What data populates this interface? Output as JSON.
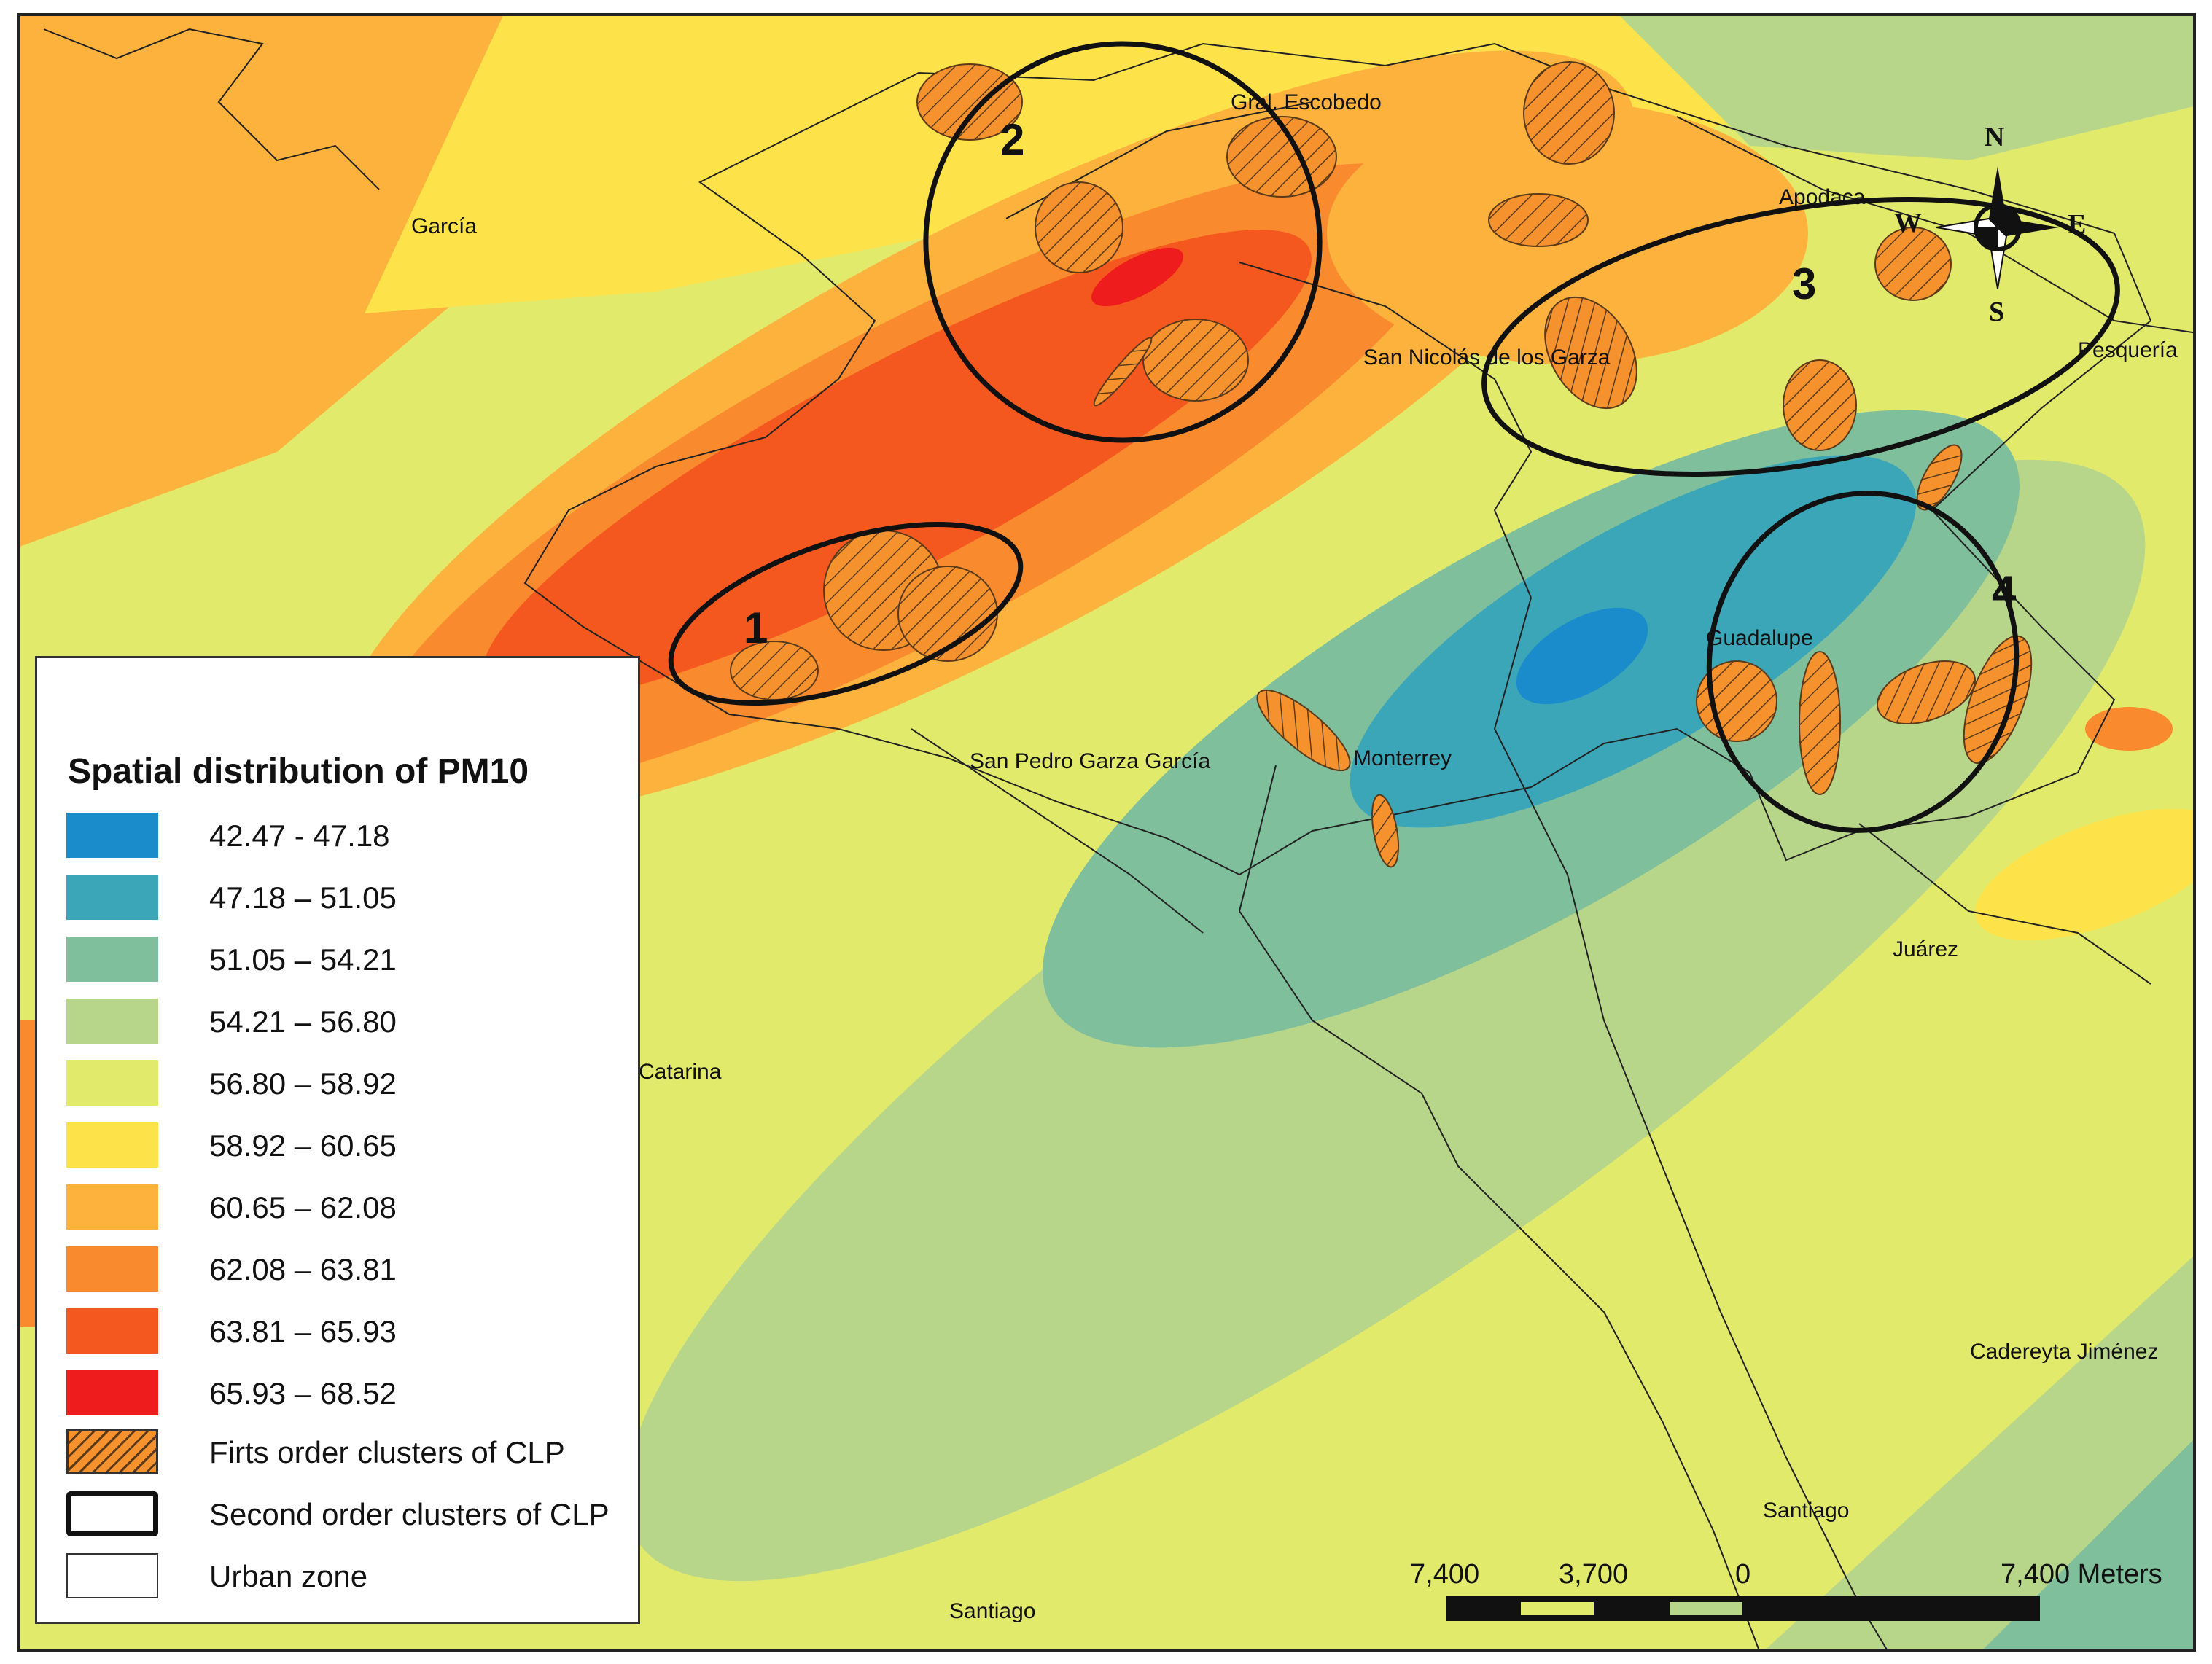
{
  "legend": {
    "title": "Spatial distribution of PM10",
    "classes": [
      {
        "label": "42.47 - 47.18",
        "color": "#1a8ccc"
      },
      {
        "label": "47.18 – 51.05",
        "color": "#3ba6b8"
      },
      {
        "label": "51.05 – 54.21",
        "color": "#7fbf9c"
      },
      {
        "label": "54.21 – 56.80",
        "color": "#b8d68a"
      },
      {
        "label": "56.80 – 58.92",
        "color": "#e2ea6c"
      },
      {
        "label": "58.92 – 60.65",
        "color": "#fde24a"
      },
      {
        "label": "60.65 – 62.08",
        "color": "#fcb23c"
      },
      {
        "label": "62.08 – 63.81",
        "color": "#f98a2e"
      },
      {
        "label": "63.81 – 65.93",
        "color": "#f5581f"
      },
      {
        "label": "65.93 – 68.52",
        "color": "#ee1c1c"
      }
    ],
    "first_order": "Firts order clusters of CLP",
    "second_order": "Second order clusters of CLP",
    "urban_zone": "Urban zone"
  },
  "places": {
    "garcia": "García",
    "gral_escobedo": "Gral. Escobedo",
    "apodaca": "Apodaca",
    "pesqueria": "Pesquería",
    "san_nicolas": "San Nicolás de los Garza",
    "guadalupe": "Guadalupe",
    "monterrey": "Monterrey",
    "san_pedro": "San Pedro Garza García",
    "santa_catarina": "Catarina",
    "juarez": "Juárez",
    "cadereyta": "Cadereyta Jiménez",
    "santiago_east": "Santiago",
    "santiago_south": "Santiago"
  },
  "clusters": [
    "1",
    "2",
    "3",
    "4"
  ],
  "compass": {
    "n": "N",
    "s": "S",
    "e": "E",
    "w": "W"
  },
  "scale_bar": {
    "labels": [
      "7,400",
      "3,700",
      "0",
      "7,400 Meters"
    ]
  }
}
